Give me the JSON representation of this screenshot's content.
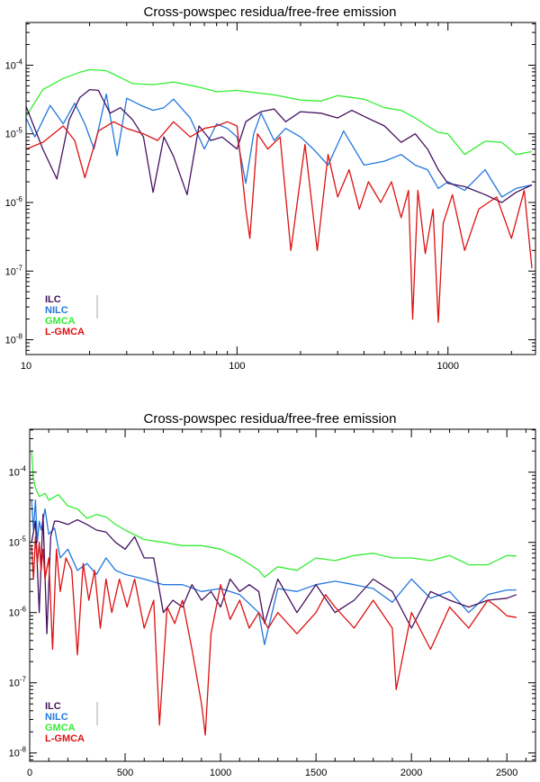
{
  "chart_data": [
    {
      "type": "line",
      "title": "Cross-powspec residua/free-free emission",
      "xscale": "log",
      "yscale": "log",
      "xlim": [
        10,
        2600
      ],
      "ylim": [
        6.08e-09,
        0.000419
      ],
      "x_tick_values": [
        10,
        100,
        1000
      ],
      "x_tick_labels": [
        "10",
        "100",
        "1000"
      ],
      "y_tick_labels": [
        {
          "mant": "10",
          "exp": "-4",
          "value": 0.0001
        },
        {
          "mant": "10",
          "exp": "-5",
          "value": 1e-05
        },
        {
          "mant": "10",
          "exp": "-6",
          "value": 1e-06
        },
        {
          "mant": "10",
          "exp": "-7",
          "value": 1e-07
        },
        {
          "mant": "10",
          "exp": "-8",
          "value": 1e-08
        }
      ],
      "legend": {
        "position": "bottom-left",
        "entries": [
          "ILC",
          "NILC",
          "GMCA",
          "L-GMCA"
        ]
      },
      "series": [
        {
          "name": "GMCA",
          "color": "#33ee33",
          "x": [
            10,
            12,
            15,
            18,
            20,
            24,
            28,
            32,
            40,
            50,
            60,
            70,
            80,
            100,
            120,
            150,
            200,
            250,
            300,
            400,
            500,
            600,
            700,
            800,
            900,
            1000,
            1200,
            1500,
            1800,
            2100,
            2500
          ],
          "y": [
            1.8e-05,
            4.4e-05,
            6.4e-05,
            7.9e-05,
            8.6e-05,
            8.3e-05,
            6.6e-05,
            5.4e-05,
            5.2e-05,
            5.7e-05,
            5.1e-05,
            4.6e-05,
            4.1e-05,
            4.3e-05,
            4e-05,
            3.7e-05,
            3.1e-05,
            3e-05,
            3.6e-05,
            3.2e-05,
            2.4e-05,
            2.2e-05,
            1.7e-05,
            1.3e-05,
            1.05e-05,
            1e-05,
            5e-06,
            7.8e-06,
            7.5e-06,
            5e-06,
            5.5e-06
          ]
        },
        {
          "name": "NILC",
          "color": "#2277dd",
          "x": [
            10,
            11,
            13,
            15,
            17,
            19,
            21,
            24,
            27,
            30,
            35,
            40,
            45,
            50,
            60,
            70,
            80,
            90,
            100,
            110,
            120,
            130,
            150,
            170,
            200,
            230,
            270,
            320,
            400,
            500,
            600,
            700,
            800,
            900,
            1000,
            1200,
            1500,
            1800,
            2100,
            2500
          ],
          "y": [
            1.7e-05,
            9e-06,
            2.6e-05,
            1.4e-05,
            2.8e-05,
            1.4e-05,
            6e-06,
            3.8e-05,
            4.8e-06,
            3.3e-05,
            2.6e-05,
            2.2e-05,
            2.4e-05,
            3.2e-05,
            1.7e-05,
            6e-06,
            1.4e-05,
            1.2e-05,
            9e-06,
            1.9e-06,
            1e-05,
            2e-05,
            8e-06,
            1.2e-05,
            9e-06,
            6e-06,
            3.5e-06,
            1.1e-05,
            3.5e-06,
            4e-06,
            5e-06,
            3.5e-06,
            3e-06,
            1.6e-06,
            2e-06,
            1.5e-06,
            3e-06,
            1.2e-06,
            1.6e-06,
            1.8e-06
          ]
        },
        {
          "name": "ILC",
          "color": "#44115f",
          "x": [
            10,
            12,
            14,
            16,
            18,
            20,
            22,
            25,
            28,
            32,
            36,
            40,
            45,
            50,
            58,
            66,
            75,
            85,
            100,
            110,
            120,
            130,
            150,
            170,
            200,
            250,
            300,
            350,
            400,
            500,
            600,
            700,
            800,
            900,
            1000,
            1200,
            1500,
            1800,
            2100,
            2500
          ],
          "y": [
            2.5e-05,
            6e-06,
            2.2e-06,
            1.6e-05,
            3.4e-05,
            4.4e-05,
            4.3e-05,
            2e-05,
            2.4e-05,
            1.6e-05,
            9e-06,
            1.4e-06,
            9e-06,
            4.7e-06,
            1.3e-06,
            1.3e-05,
            8e-06,
            9e-06,
            6e-06,
            1.5e-05,
            1.8e-05,
            2.1e-05,
            2.3e-05,
            1.5e-05,
            2.1e-05,
            2e-05,
            1.7e-05,
            2.2e-05,
            1.8e-05,
            1.3e-05,
            7.5e-06,
            1e-05,
            6e-06,
            3e-06,
            1.9e-06,
            1.7e-06,
            1.3e-06,
            1e-06,
            1.4e-06,
            1.8e-06
          ]
        },
        {
          "name": "L-GMCA",
          "color": "#dd1111",
          "x": [
            10,
            12,
            15,
            17,
            19,
            22,
            26,
            30,
            36,
            42,
            50,
            60,
            70,
            80,
            90,
            100,
            110,
            115,
            125,
            140,
            160,
            180,
            210,
            240,
            270,
            300,
            340,
            380,
            420,
            480,
            540,
            600,
            650,
            680,
            720,
            780,
            850,
            900,
            950,
            1050,
            1200,
            1400,
            1700,
            2000,
            2300,
            2500
          ],
          "y": [
            6e-06,
            7.5e-06,
            1.3e-05,
            8e-06,
            2.3e-06,
            1.1e-05,
            1.5e-05,
            1.2e-05,
            1e-05,
            8e-06,
            1.5e-05,
            9e-06,
            1.2e-05,
            1.3e-05,
            1.5e-05,
            1.3e-05,
            8e-07,
            3e-07,
            1e-05,
            6e-06,
            9e-06,
            2e-07,
            7e-06,
            2e-07,
            5e-06,
            1.2e-06,
            3e-06,
            8e-07,
            2e-06,
            1e-06,
            2e-06,
            6e-07,
            1.5e-06,
            2e-08,
            1.5e-06,
            1.8e-07,
            8e-07,
            1.8e-08,
            5e-07,
            1.3e-06,
            2e-07,
            8e-07,
            1.2e-06,
            3e-07,
            1.5e-06,
            1.1e-07
          ]
        }
      ]
    },
    {
      "type": "line",
      "title": "Cross-powspec residua/free-free emission",
      "xscale": "linear",
      "yscale": "log",
      "xlim": [
        0,
        2650
      ],
      "ylim": [
        7.61e-09,
        0.000409
      ],
      "x_tick_values": [
        0,
        500,
        1000,
        1500,
        2000,
        2500
      ],
      "x_tick_labels": [
        "0",
        "500",
        "1000",
        "1500",
        "2000",
        "2500"
      ],
      "y_tick_labels": [
        {
          "mant": "10",
          "exp": "-4",
          "value": 0.0001
        },
        {
          "mant": "10",
          "exp": "-5",
          "value": 1e-05
        },
        {
          "mant": "10",
          "exp": "-6",
          "value": 1e-06
        },
        {
          "mant": "10",
          "exp": "-7",
          "value": 1e-07
        },
        {
          "mant": "10",
          "exp": "-8",
          "value": 1e-08
        }
      ],
      "legend": {
        "position": "bottom-left",
        "entries": [
          "ILC",
          "NILC",
          "GMCA",
          "L-GMCA"
        ]
      },
      "series": [
        {
          "name": "GMCA",
          "color": "#33ee33",
          "x": [
            10,
            20,
            30,
            50,
            80,
            100,
            150,
            200,
            250,
            300,
            350,
            400,
            450,
            500,
            600,
            700,
            800,
            900,
            1000,
            1100,
            1200,
            1230,
            1300,
            1400,
            1500,
            1600,
            1700,
            1800,
            1900,
            2000,
            2100,
            2200,
            2300,
            2400,
            2500,
            2550
          ],
          "y": [
            0.0002,
            8e-05,
            6e-05,
            4.5e-05,
            5e-05,
            4e-05,
            4.8e-05,
            3.3e-05,
            3e-05,
            2.2e-05,
            2.5e-05,
            2.3e-05,
            1.8e-05,
            1.5e-05,
            1.1e-05,
            1e-05,
            9e-06,
            9e-06,
            8e-06,
            6e-06,
            4e-06,
            3.2e-06,
            4.5e-06,
            4e-06,
            6e-06,
            5.5e-06,
            6.5e-06,
            7e-06,
            6e-06,
            6e-06,
            5.5e-06,
            6.5e-06,
            4.8e-06,
            4.8e-06,
            6.5e-06,
            6.4e-06
          ]
        },
        {
          "name": "NILC",
          "color": "#2277dd",
          "x": [
            10,
            20,
            30,
            40,
            50,
            60,
            80,
            100,
            130,
            160,
            200,
            250,
            300,
            350,
            400,
            450,
            500,
            600,
            700,
            800,
            900,
            1000,
            1100,
            1200,
            1230,
            1300,
            1400,
            1500,
            1600,
            1700,
            1800,
            1900,
            2000,
            2100,
            2200,
            2300,
            2400,
            2500,
            2550
          ],
          "y": [
            4e-05,
            1.5e-05,
            4e-05,
            1e-05,
            2e-05,
            1.5e-05,
            3e-05,
            1.3e-05,
            1.6e-05,
            6e-06,
            8e-06,
            4e-06,
            5e-06,
            3.5e-06,
            6e-06,
            4e-06,
            3.5e-06,
            3e-06,
            2.5e-06,
            2.5e-06,
            2e-06,
            2.2e-06,
            1.8e-06,
            1e-06,
            3.5e-07,
            2.2e-06,
            2e-06,
            2.5e-06,
            2.8e-06,
            2.5e-06,
            2.2e-06,
            1.4e-06,
            3e-06,
            1.6e-06,
            2e-06,
            1e-06,
            1.8e-06,
            2.1e-06,
            2.1e-06
          ]
        },
        {
          "name": "ILC",
          "color": "#44115f",
          "x": [
            10,
            30,
            50,
            70,
            90,
            110,
            130,
            150,
            200,
            250,
            300,
            350,
            400,
            450,
            500,
            550,
            600,
            650,
            700,
            750,
            800,
            850,
            900,
            950,
            1000,
            1050,
            1100,
            1150,
            1200,
            1230,
            1300,
            1400,
            1500,
            1600,
            1700,
            1800,
            1900,
            2000,
            2100,
            2200,
            2300,
            2400,
            2500,
            2550
          ],
          "y": [
            1e-05,
            2e-05,
            1e-06,
            2.5e-05,
            5e-07,
            1.2e-05,
            2e-05,
            2e-05,
            1.8e-05,
            2.1e-05,
            1.8e-05,
            1.5e-05,
            1.4e-05,
            1e-05,
            8e-06,
            1.2e-05,
            6e-06,
            6e-06,
            1e-06,
            1.5e-06,
            1.2e-06,
            2.5e-06,
            1.5e-06,
            2e-06,
            1.2e-06,
            3e-06,
            2e-06,
            2.5e-06,
            2e-06,
            7e-07,
            3e-06,
            1e-06,
            2.5e-06,
            1e-06,
            1.5e-06,
            3e-06,
            2e-06,
            6e-07,
            2e-06,
            1.5e-06,
            1.2e-06,
            1.5e-06,
            1.6e-06,
            1.8e-06
          ]
        },
        {
          "name": "L-GMCA",
          "color": "#dd1111",
          "x": [
            10,
            20,
            30,
            40,
            50,
            60,
            70,
            80,
            100,
            120,
            140,
            160,
            190,
            220,
            250,
            280,
            310,
            340,
            370,
            400,
            430,
            470,
            510,
            550,
            600,
            650,
            680,
            720,
            760,
            800,
            850,
            900,
            920,
            950,
            1000,
            1050,
            1100,
            1150,
            1200,
            1250,
            1300,
            1400,
            1500,
            1550,
            1600,
            1700,
            1800,
            1900,
            1920,
            2000,
            2100,
            2150,
            2200,
            2300,
            2400,
            2450,
            2500,
            2550
          ],
          "y": [
            9e-06,
            3e-06,
            1.2e-05,
            5e-06,
            1e-05,
            4e-06,
            8e-06,
            3e-06,
            6e-06,
            3e-07,
            8e-06,
            2e-06,
            6e-06,
            4e-06,
            2.5e-07,
            5e-06,
            1.5e-06,
            4e-06,
            6e-07,
            3e-06,
            1e-06,
            3e-06,
            1.2e-06,
            3e-06,
            6e-07,
            1.5e-06,
            2.5e-08,
            1.2e-06,
            7e-07,
            1.5e-06,
            3e-07,
            5e-08,
            1.8e-08,
            5e-07,
            2.5e-06,
            8e-07,
            1.5e-06,
            6e-07,
            1e-06,
            6e-07,
            1e-06,
            5e-07,
            1e-06,
            1.8e-06,
            1.2e-06,
            6e-07,
            1.5e-06,
            6e-07,
            8e-08,
            1e-06,
            3e-07,
            6e-07,
            1.2e-06,
            6e-07,
            1.5e-06,
            1.2e-06,
            9e-07,
            8.5e-07
          ]
        }
      ]
    }
  ]
}
